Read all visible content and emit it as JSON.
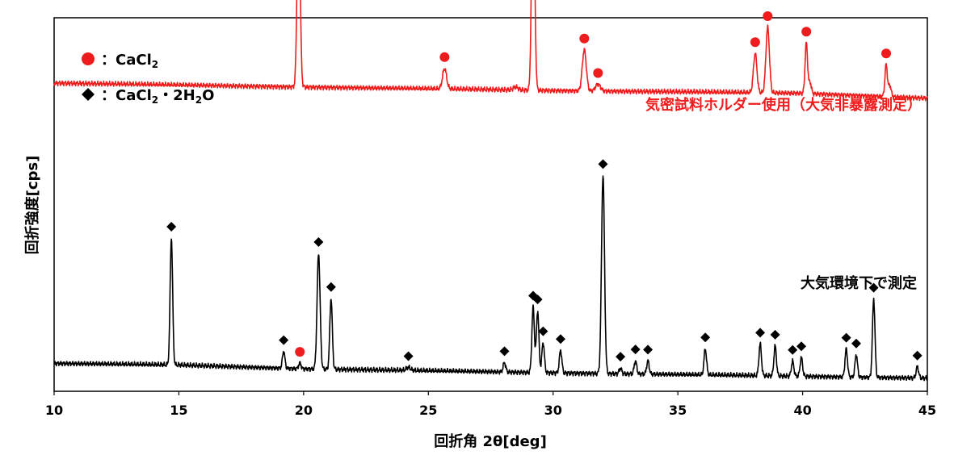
{
  "chart_data": {
    "type": "line",
    "title": "",
    "xlabel": "回折角 2θ[deg]",
    "ylabel": "回折強度[cps]",
    "xlim": [
      10,
      45
    ],
    "x_ticks": [
      "10",
      "15",
      "20",
      "25",
      "30",
      "35",
      "40",
      "45"
    ],
    "y_ticks_shown": false,
    "ylim": [
      0,
      100
    ],
    "grid": false,
    "colors": {
      "red": "#ee1c1c",
      "black": "#000000"
    },
    "legend": {
      "placement": "top-left",
      "items": [
        {
          "marker": "circle",
          "color": "#ee1c1c",
          "sep": "：",
          "label": "CaCl",
          "sub": "2",
          "tail": "",
          "sub2": "",
          "tail2": ""
        },
        {
          "marker": "diamond",
          "color": "#000000",
          "sep": "：",
          "label": "CaCl",
          "sub": "2",
          "tail": "・2H",
          "sub2": "2",
          "tail2": "O"
        }
      ]
    },
    "series": [
      {
        "name": "気密試料ホルダー使用（大気非暴露測定）",
        "color": "#ee1c1c",
        "baseline": [
          [
            10,
            82.5
          ],
          [
            20,
            81.5
          ],
          [
            30,
            80.5
          ],
          [
            40,
            79.8
          ],
          [
            45,
            78.5
          ]
        ],
        "peaks": [
          {
            "x": 19.8,
            "h": 52,
            "w": 0.06,
            "marker": "circle"
          },
          {
            "x": 25.65,
            "h": 5.5,
            "w": 0.08,
            "marker": "circle"
          },
          {
            "x": 28.5,
            "h": 0.8,
            "w": 0.1,
            "marker": ""
          },
          {
            "x": 29.2,
            "h": 62,
            "w": 0.06,
            "marker": "circle"
          },
          {
            "x": 31.25,
            "h": 11,
            "w": 0.08,
            "marker": "circle"
          },
          {
            "x": 31.8,
            "h": 1.8,
            "w": 0.1,
            "marker": "circle"
          },
          {
            "x": 38.1,
            "h": 10.5,
            "w": 0.07,
            "marker": "circle"
          },
          {
            "x": 38.6,
            "h": 17.5,
            "w": 0.07,
            "marker": "circle"
          },
          {
            "x": 40.15,
            "h": 13.5,
            "w": 0.05,
            "marker": "circle"
          },
          {
            "x": 40.3,
            "h": 3.0,
            "w": 0.05,
            "marker": ""
          },
          {
            "x": 43.35,
            "h": 8.5,
            "w": 0.05,
            "marker": "circle"
          },
          {
            "x": 43.5,
            "h": 3.0,
            "w": 0.05,
            "marker": ""
          }
        ]
      },
      {
        "name": "大気環境下で測定",
        "color": "#000000",
        "baseline": [
          [
            10,
            7.5
          ],
          [
            15,
            7.0
          ],
          [
            20,
            6.0
          ],
          [
            25,
            5.5
          ],
          [
            30,
            5.0
          ],
          [
            40,
            4.0
          ],
          [
            45,
            3.5
          ]
        ],
        "peaks": [
          {
            "x": 14.7,
            "h": 34,
            "w": 0.05,
            "marker": "diamond"
          },
          {
            "x": 19.2,
            "h": 4.5,
            "w": 0.05,
            "marker": "diamond"
          },
          {
            "x": 19.85,
            "h": 1.5,
            "w": 0.05,
            "marker": "circle"
          },
          {
            "x": 20.6,
            "h": 31,
            "w": 0.06,
            "marker": "diamond"
          },
          {
            "x": 21.1,
            "h": 19,
            "w": 0.05,
            "marker": "diamond"
          },
          {
            "x": 24.2,
            "h": 0.8,
            "w": 0.08,
            "marker": "diamond"
          },
          {
            "x": 28.05,
            "h": 2.5,
            "w": 0.05,
            "marker": "diamond"
          },
          {
            "x": 29.2,
            "h": 17.5,
            "w": 0.05,
            "marker": "diamond"
          },
          {
            "x": 29.38,
            "h": 16.5,
            "w": 0.05,
            "marker": "diamond"
          },
          {
            "x": 29.6,
            "h": 8,
            "w": 0.05,
            "marker": "diamond"
          },
          {
            "x": 30.3,
            "h": 6,
            "w": 0.05,
            "marker": "diamond"
          },
          {
            "x": 32.0,
            "h": 53,
            "w": 0.06,
            "marker": "diamond"
          },
          {
            "x": 32.7,
            "h": 1.5,
            "w": 0.05,
            "marker": "diamond"
          },
          {
            "x": 33.3,
            "h": 3.5,
            "w": 0.05,
            "marker": "diamond"
          },
          {
            "x": 33.8,
            "h": 3.5,
            "w": 0.05,
            "marker": "diamond"
          },
          {
            "x": 36.1,
            "h": 7.0,
            "w": 0.05,
            "marker": "diamond"
          },
          {
            "x": 38.3,
            "h": 8.5,
            "w": 0.05,
            "marker": "diamond"
          },
          {
            "x": 38.9,
            "h": 8.0,
            "w": 0.05,
            "marker": "diamond"
          },
          {
            "x": 39.6,
            "h": 4.0,
            "w": 0.05,
            "marker": "diamond"
          },
          {
            "x": 39.95,
            "h": 5.0,
            "w": 0.05,
            "marker": "diamond"
          },
          {
            "x": 41.75,
            "h": 7.5,
            "w": 0.05,
            "marker": "diamond"
          },
          {
            "x": 42.15,
            "h": 6.0,
            "w": 0.05,
            "marker": "diamond"
          },
          {
            "x": 42.85,
            "h": 21,
            "w": 0.05,
            "marker": "diamond"
          },
          {
            "x": 44.6,
            "h": 3.0,
            "w": 0.05,
            "marker": "diamond"
          }
        ]
      }
    ]
  }
}
